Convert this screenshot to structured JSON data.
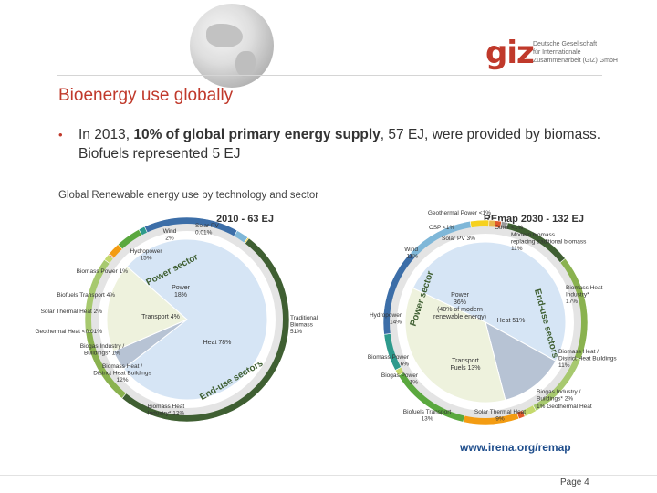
{
  "slide": {
    "title": "Bioenergy use globally",
    "bullet_pre": "In 2013, ",
    "bullet_bold": "10% of global primary energy supply",
    "bullet_post": ", 57 EJ, were provided by biomass. Biofuels represented 5 EJ",
    "caption": "Global Renewable energy use by technology and sector",
    "link": "www.irena.org/remap",
    "page": "Page 4",
    "logo_mark": "giz",
    "logo_text": "Deutsche Gesellschaft\nfür Internationale\nZusammenarbeit (GIZ) GmbH"
  },
  "colors": {
    "accent_red": "#c0392b",
    "traditional_biomass": "#3f5f32",
    "biomass_heat": "#8ab24f",
    "biomass_power": "#2e9a8c",
    "biofuels_transport": "#5aa83e",
    "solar_thermal": "#f39c12",
    "hydropower": "#3c6ea8",
    "wind": "#7fb7d8",
    "solar_pv": "#f6d11e",
    "heat_sector": "#d6e5f5",
    "power_sector": "#eef2dd",
    "transport_sector": "#b7c3d4"
  },
  "chart_data": [
    {
      "type": "pie",
      "title": "2010 - 63 EJ",
      "series": [
        {
          "name": "Traditional Biomass",
          "value": 51,
          "label": "Traditional\nBiomass\n51%"
        },
        {
          "name": "Biomass Heat Industry",
          "value": 12,
          "label": "Biomass Heat\nIndustry* 12%"
        },
        {
          "name": "Biomass Heat / District Heat Buildings",
          "value": 12,
          "label": "Biomass Heat /\nDistrict Heat Buildings\n12%"
        },
        {
          "name": "Biogas Industry / Buildings",
          "value": 1,
          "label": "Biogas Industry /\nBuildings* 1%"
        },
        {
          "name": "Geothermal Heat",
          "value": 0.01,
          "label": "Geothermal Heat <0.01%"
        },
        {
          "name": "Solar Thermal Heat",
          "value": 2,
          "label": "Solar Thermal Heat 2%"
        },
        {
          "name": "Biofuels Transport",
          "value": 4,
          "label": "Biofuels Transport 4%"
        },
        {
          "name": "Biomass Power",
          "value": 1,
          "label": "Biomass Power 1%"
        },
        {
          "name": "Hydropower",
          "value": 15,
          "label": "Hydropower\n15%"
        },
        {
          "name": "Wind",
          "value": 2,
          "label": "Wind\n2%"
        },
        {
          "name": "Solar PV",
          "value": 0.01,
          "label": "Solar PV\n0.01%"
        }
      ],
      "inner": [
        {
          "name": "Heat",
          "value": 78,
          "label": "Heat 78%"
        },
        {
          "name": "Transport",
          "value": 4,
          "label": "Transport 4%"
        },
        {
          "name": "Power",
          "value": 18,
          "label": "Power\n18%"
        }
      ],
      "sector_labels": [
        "Power sector",
        "End-use sectors"
      ]
    },
    {
      "type": "pie",
      "title": "REmap 2030 - 132 EJ",
      "series": [
        {
          "name": "Modern biomass replacing traditional biomass",
          "value": 11,
          "label": "Modern biomass\nreplacing traditional biomass\n11%"
        },
        {
          "name": "Biomass Heat Industry",
          "value": 17,
          "label": "Biomass Heat\nIndustry*\n17%"
        },
        {
          "name": "Biomass Heat / District Heat Buildings",
          "value": 11,
          "label": "Biomass Heat /\nDistrict Heat Buildings\n11%"
        },
        {
          "name": "Biogas Industry / Buildings",
          "value": 2,
          "label": "Biogas Industry /\nBuildings* 2%"
        },
        {
          "name": "Geothermal Heat",
          "value": 1,
          "label": "1% Geothermal Heat"
        },
        {
          "name": "Solar Thermal Heat",
          "value": 9,
          "label": "Solar Thermal Heat\n9%"
        },
        {
          "name": "Biofuels Transport",
          "value": 13,
          "label": "Biofuels Transport\n13%"
        },
        {
          "name": "Biogas Power",
          "value": 1,
          "label": "Biogas Power\n1%"
        },
        {
          "name": "Biomass Power",
          "value": 6,
          "label": "Biomass Power\n6%"
        },
        {
          "name": "Hydropower",
          "value": 14,
          "label": "Hydropower\n14%"
        },
        {
          "name": "Wind",
          "value": 11,
          "label": "Wind\n11%"
        },
        {
          "name": "Solar PV",
          "value": 3,
          "label": "Solar PV 3%"
        },
        {
          "name": "CSP",
          "value": 1,
          "label": "CSP <1%"
        },
        {
          "name": "Geothermal Power",
          "value": 1,
          "label": "Geothermal Power <1%"
        },
        {
          "name": "Other",
          "value": 1,
          "label": "Other <1%"
        }
      ],
      "inner": [
        {
          "name": "Heat",
          "value": 51,
          "label": "Heat 51%"
        },
        {
          "name": "Transport",
          "value": 13,
          "label": "Transport\nFuels 13%"
        },
        {
          "name": "Power",
          "value": 36,
          "label": "Power\n36%\n(40% of modern\nrenewable energy)"
        }
      ],
      "sector_labels": [
        "Power sector",
        "End-use sectors"
      ]
    }
  ]
}
